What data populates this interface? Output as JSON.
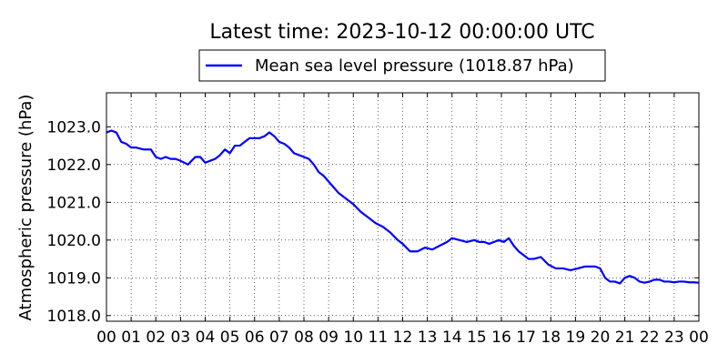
{
  "chart_data": {
    "type": "line",
    "title": "Latest time: 2023-10-12 00:00:00 UTC",
    "xlabel": "",
    "ylabel": "Atmospheric pressure (hPa)",
    "x_tick_labels": [
      "00",
      "01",
      "02",
      "03",
      "04",
      "05",
      "06",
      "07",
      "08",
      "09",
      "10",
      "11",
      "12",
      "13",
      "14",
      "15",
      "16",
      "17",
      "18",
      "19",
      "20",
      "21",
      "22",
      "23",
      "00"
    ],
    "y_tick_labels": [
      "1018.0",
      "1019.0",
      "1020.0",
      "1021.0",
      "1022.0",
      "1023.0"
    ],
    "xlim": [
      0,
      24
    ],
    "ylim": [
      1017.85,
      1023.9
    ],
    "grid": true,
    "legend_position": "top-center-outside",
    "series": [
      {
        "name": "Mean sea level pressure (1018.87 hPa)",
        "color": "#0000ff",
        "x": [
          0,
          0.2,
          0.4,
          0.6,
          0.8,
          1.0,
          1.2,
          1.5,
          1.8,
          2.0,
          2.2,
          2.4,
          2.6,
          2.8,
          3.0,
          3.3,
          3.6,
          3.8,
          4.0,
          4.2,
          4.4,
          4.6,
          4.8,
          5.0,
          5.2,
          5.4,
          5.6,
          5.8,
          6.0,
          6.2,
          6.4,
          6.6,
          6.8,
          7.0,
          7.2,
          7.4,
          7.6,
          7.8,
          8.0,
          8.2,
          8.4,
          8.6,
          8.8,
          9.0,
          9.2,
          9.4,
          9.6,
          9.8,
          10.0,
          10.3,
          10.6,
          10.9,
          11.2,
          11.5,
          11.8,
          12.0,
          12.3,
          12.6,
          12.9,
          13.2,
          13.5,
          13.8,
          14.0,
          14.3,
          14.6,
          14.9,
          15.1,
          15.3,
          15.5,
          15.7,
          15.9,
          16.1,
          16.3,
          16.5,
          16.7,
          16.9,
          17.1,
          17.3,
          17.6,
          17.9,
          18.2,
          18.5,
          18.8,
          19.1,
          19.4,
          19.6,
          19.8,
          20.0,
          20.2,
          20.4,
          20.6,
          20.8,
          21.0,
          21.2,
          21.4,
          21.6,
          21.8,
          22.0,
          22.2,
          22.4,
          22.6,
          22.8,
          23.0,
          23.2,
          23.4,
          23.6,
          23.8,
          24.0
        ],
        "y": [
          1022.85,
          1022.9,
          1022.85,
          1022.6,
          1022.55,
          1022.45,
          1022.45,
          1022.4,
          1022.4,
          1022.2,
          1022.15,
          1022.2,
          1022.15,
          1022.15,
          1022.1,
          1022.0,
          1022.2,
          1022.2,
          1022.05,
          1022.1,
          1022.15,
          1022.25,
          1022.4,
          1022.3,
          1022.5,
          1022.5,
          1022.6,
          1022.7,
          1022.7,
          1022.7,
          1022.75,
          1022.85,
          1022.75,
          1022.6,
          1022.55,
          1022.45,
          1022.3,
          1022.25,
          1022.2,
          1022.15,
          1022.0,
          1021.8,
          1021.7,
          1021.55,
          1021.4,
          1021.25,
          1021.15,
          1021.05,
          1020.95,
          1020.75,
          1020.6,
          1020.45,
          1020.35,
          1020.2,
          1020.0,
          1019.9,
          1019.7,
          1019.7,
          1019.8,
          1019.75,
          1019.85,
          1019.95,
          1020.05,
          1020.0,
          1019.95,
          1020.0,
          1019.95,
          1019.95,
          1019.9,
          1019.95,
          1020.0,
          1019.95,
          1020.05,
          1019.85,
          1019.7,
          1019.6,
          1019.5,
          1019.5,
          1019.55,
          1019.35,
          1019.25,
          1019.25,
          1019.2,
          1019.25,
          1019.3,
          1019.3,
          1019.3,
          1019.25,
          1019.0,
          1018.9,
          1018.9,
          1018.85,
          1019.0,
          1019.05,
          1019.0,
          1018.9,
          1018.87,
          1018.9,
          1018.95,
          1018.95,
          1018.9,
          1018.9,
          1018.88,
          1018.9,
          1018.9,
          1018.88,
          1018.88,
          1018.87
        ]
      }
    ]
  }
}
